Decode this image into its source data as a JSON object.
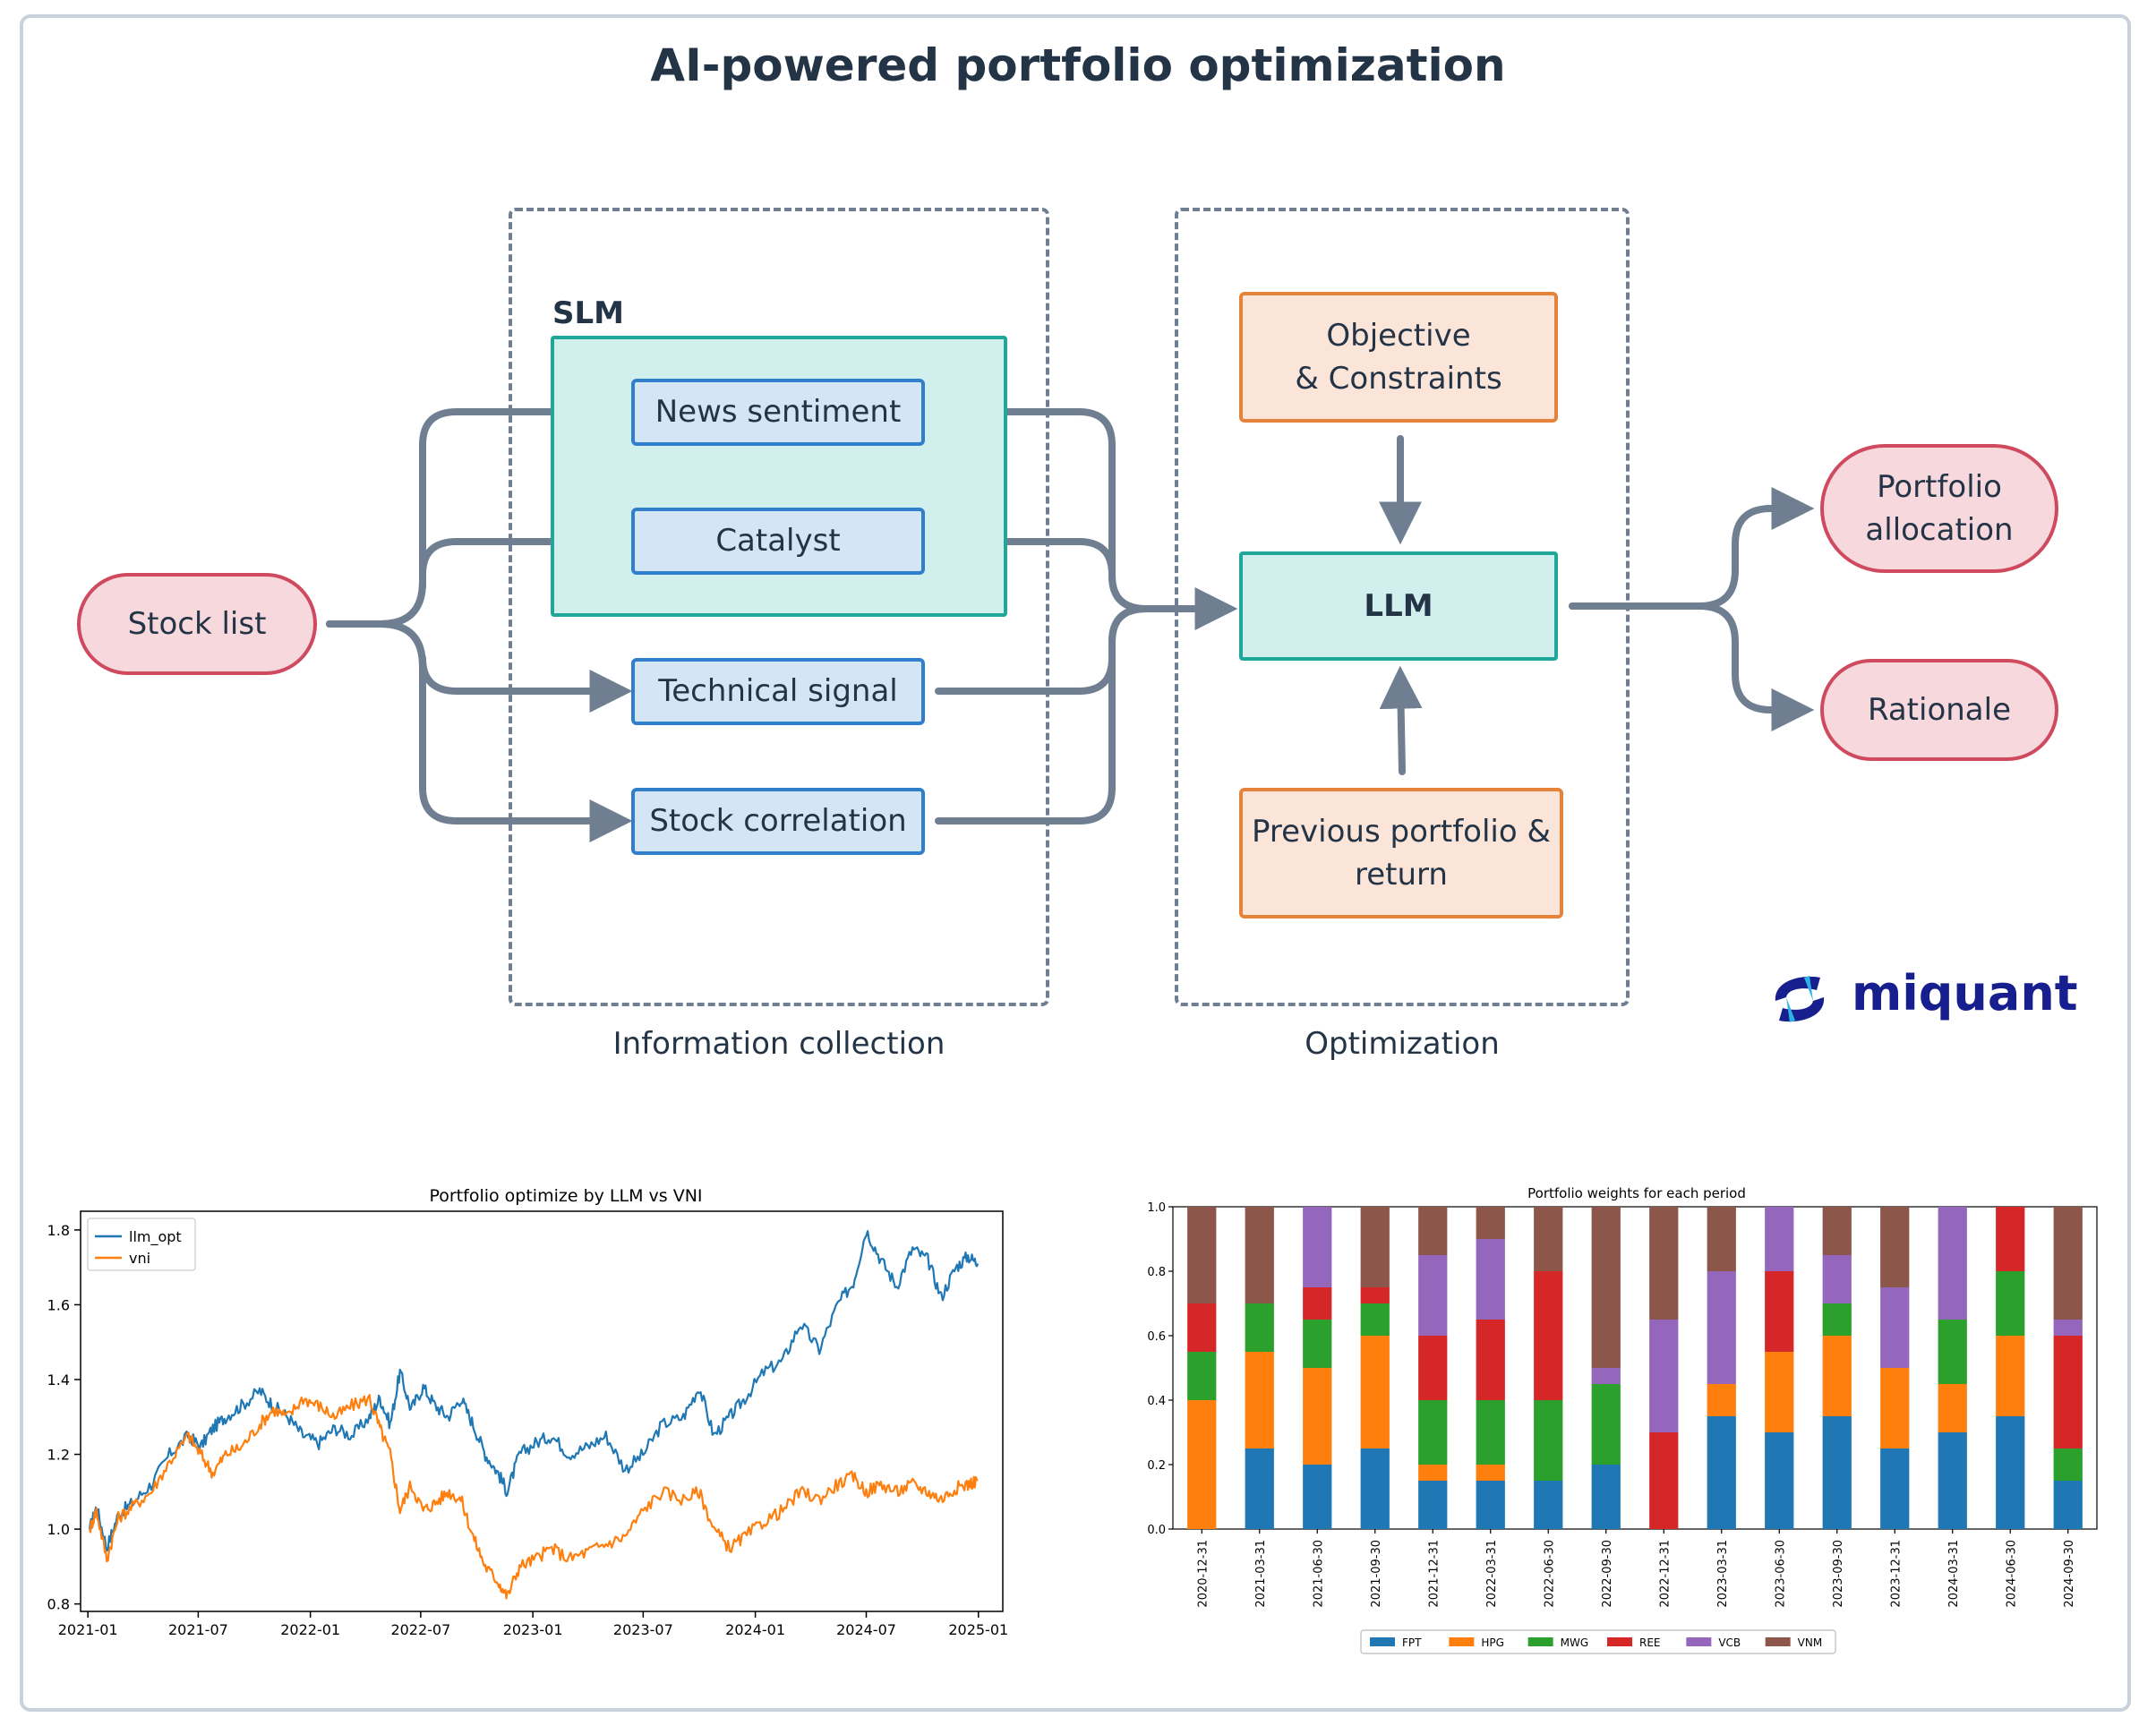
{
  "title": "AI-powered portfolio optimization",
  "diagram": {
    "stock_list": "Stock list",
    "slm_label": "SLM",
    "news_sentiment": "News sentiment",
    "catalyst": "Catalyst",
    "technical_signal": "Technical signal",
    "stock_correlation": "Stock correlation",
    "objective_line1": "Objective",
    "objective_line2": "& Constraints",
    "llm": "LLM",
    "previous_line1": "Previous portfolio &",
    "previous_line2": "return",
    "portfolio_line1": "Portfolio",
    "portfolio_line2": "allocation",
    "rationale": "Rationale",
    "info_caption": "Information collection",
    "opt_caption": "Optimization",
    "logo": "miquant",
    "colors": {
      "arrow": "#6f7f91",
      "pill": "#cf4a5e",
      "blue": "#2f7fcb",
      "orange": "#e6833a",
      "teal": "#1fa79a"
    }
  },
  "chart_data": [
    {
      "type": "line",
      "title": "Portfolio optimize by LLM vs VNI",
      "xlabel": "",
      "ylabel": "",
      "x_ticks": [
        "2021-01",
        "2021-07",
        "2022-01",
        "2022-07",
        "2023-01",
        "2023-07",
        "2024-01",
        "2024-07",
        "2025-01"
      ],
      "y_ticks": [
        "0.8",
        "1.0",
        "1.2",
        "1.4",
        "1.6",
        "1.8"
      ],
      "ylim": [
        0.78,
        1.85
      ],
      "xlim": [
        "2020-12-20",
        "2025-02-10"
      ],
      "legend": "top-left",
      "series": [
        {
          "name": "llm_opt",
          "color": "#1f77b4",
          "x": [
            "2021-01-04",
            "2021-01-15",
            "2021-02-01",
            "2021-02-20",
            "2021-03-15",
            "2021-04-15",
            "2021-05-15",
            "2021-06-15",
            "2021-07-05",
            "2021-07-25",
            "2021-08-15",
            "2021-09-10",
            "2021-10-10",
            "2021-11-01",
            "2021-11-25",
            "2021-12-20",
            "2022-01-15",
            "2022-02-10",
            "2022-03-10",
            "2022-04-08",
            "2022-04-25",
            "2022-05-12",
            "2022-05-28",
            "2022-06-15",
            "2022-07-05",
            "2022-07-25",
            "2022-08-15",
            "2022-09-05",
            "2022-09-25",
            "2022-10-15",
            "2022-11-05",
            "2022-11-20",
            "2022-12-10",
            "2023-01-05",
            "2023-02-01",
            "2023-03-01",
            "2023-04-01",
            "2023-05-01",
            "2023-06-01",
            "2023-07-01",
            "2023-08-01",
            "2023-09-05",
            "2023-10-01",
            "2023-10-25",
            "2023-11-20",
            "2023-12-15",
            "2024-01-15",
            "2024-02-15",
            "2024-03-15",
            "2024-04-15",
            "2024-05-15",
            "2024-06-10",
            "2024-07-01",
            "2024-07-25",
            "2024-08-20",
            "2024-09-15",
            "2024-10-10",
            "2024-11-01",
            "2024-11-25",
            "2024-12-15",
            "2024-12-31"
          ],
          "values": [
            1.0,
            1.06,
            0.95,
            1.04,
            1.07,
            1.12,
            1.2,
            1.25,
            1.22,
            1.27,
            1.3,
            1.33,
            1.37,
            1.33,
            1.3,
            1.25,
            1.23,
            1.27,
            1.25,
            1.3,
            1.35,
            1.28,
            1.42,
            1.32,
            1.38,
            1.33,
            1.3,
            1.35,
            1.28,
            1.2,
            1.15,
            1.1,
            1.2,
            1.23,
            1.25,
            1.2,
            1.22,
            1.25,
            1.16,
            1.2,
            1.28,
            1.3,
            1.38,
            1.25,
            1.3,
            1.35,
            1.42,
            1.45,
            1.55,
            1.48,
            1.6,
            1.66,
            1.8,
            1.72,
            1.65,
            1.75,
            1.72,
            1.62,
            1.7,
            1.73,
            1.71
          ]
        },
        {
          "name": "vni",
          "color": "#ff7f0e",
          "x": [
            "2021-01-04",
            "2021-01-15",
            "2021-02-01",
            "2021-02-20",
            "2021-03-15",
            "2021-04-15",
            "2021-05-15",
            "2021-06-15",
            "2021-07-05",
            "2021-07-25",
            "2021-08-15",
            "2021-09-10",
            "2021-10-10",
            "2021-11-01",
            "2021-11-25",
            "2021-12-20",
            "2022-01-15",
            "2022-02-10",
            "2022-03-10",
            "2022-04-08",
            "2022-04-25",
            "2022-05-12",
            "2022-05-28",
            "2022-06-15",
            "2022-07-05",
            "2022-07-25",
            "2022-08-15",
            "2022-09-05",
            "2022-09-25",
            "2022-10-15",
            "2022-11-05",
            "2022-11-20",
            "2022-12-10",
            "2023-01-05",
            "2023-02-01",
            "2023-03-01",
            "2023-04-01",
            "2023-05-01",
            "2023-06-01",
            "2023-07-01",
            "2023-08-01",
            "2023-09-05",
            "2023-10-01",
            "2023-10-25",
            "2023-11-20",
            "2023-12-15",
            "2024-01-15",
            "2024-02-15",
            "2024-03-15",
            "2024-04-15",
            "2024-05-15",
            "2024-06-10",
            "2024-07-01",
            "2024-07-25",
            "2024-08-20",
            "2024-09-15",
            "2024-10-10",
            "2024-11-01",
            "2024-11-25",
            "2024-12-15",
            "2024-12-31"
          ],
          "values": [
            1.0,
            1.05,
            0.92,
            1.03,
            1.06,
            1.1,
            1.18,
            1.25,
            1.2,
            1.15,
            1.2,
            1.22,
            1.28,
            1.32,
            1.3,
            1.35,
            1.33,
            1.3,
            1.33,
            1.35,
            1.27,
            1.2,
            1.05,
            1.12,
            1.05,
            1.07,
            1.1,
            1.08,
            0.98,
            0.9,
            0.86,
            0.82,
            0.9,
            0.92,
            0.95,
            0.92,
            0.94,
            0.96,
            0.98,
            1.05,
            1.1,
            1.08,
            1.1,
            1.0,
            0.95,
            0.98,
            1.02,
            1.05,
            1.1,
            1.08,
            1.12,
            1.14,
            1.1,
            1.12,
            1.1,
            1.12,
            1.1,
            1.08,
            1.11,
            1.12,
            1.13
          ]
        }
      ]
    },
    {
      "type": "bar",
      "stacked": true,
      "title": "Portfolio weights for each period",
      "xlabel": "",
      "ylabel": "",
      "ylim": [
        0,
        1.0
      ],
      "y_ticks": [
        "0.0",
        "0.2",
        "0.4",
        "0.6",
        "0.8",
        "1.0"
      ],
      "legend": "bottom",
      "categories": [
        "2020-12-31",
        "2021-03-31",
        "2021-06-30",
        "2021-09-30",
        "2021-12-31",
        "2022-03-31",
        "2022-06-30",
        "2022-09-30",
        "2022-12-31",
        "2023-03-31",
        "2023-06-30",
        "2023-09-30",
        "2023-12-31",
        "2024-03-31",
        "2024-06-30",
        "2024-09-30"
      ],
      "series": [
        {
          "name": "FPT",
          "color": "#1f77b4",
          "values": [
            0.0,
            0.25,
            0.2,
            0.25,
            0.15,
            0.15,
            0.15,
            0.2,
            0.0,
            0.35,
            0.3,
            0.35,
            0.25,
            0.3,
            0.35,
            0.15
          ]
        },
        {
          "name": "HPG",
          "color": "#ff7f0e",
          "values": [
            0.4,
            0.3,
            0.3,
            0.35,
            0.05,
            0.05,
            0.0,
            0.0,
            0.0,
            0.1,
            0.25,
            0.25,
            0.25,
            0.15,
            0.25,
            0.0
          ]
        },
        {
          "name": "MWG",
          "color": "#2ca02c",
          "values": [
            0.15,
            0.15,
            0.15,
            0.1,
            0.2,
            0.2,
            0.25,
            0.25,
            0.0,
            0.0,
            0.0,
            0.1,
            0.0,
            0.2,
            0.2,
            0.1
          ]
        },
        {
          "name": "REE",
          "color": "#d62728",
          "values": [
            0.15,
            0.0,
            0.1,
            0.05,
            0.2,
            0.25,
            0.4,
            0.0,
            0.3,
            0.0,
            0.25,
            0.0,
            0.0,
            0.0,
            0.2,
            0.35
          ]
        },
        {
          "name": "VCB",
          "color": "#9467bd",
          "values": [
            0.0,
            0.0,
            0.25,
            0.0,
            0.25,
            0.25,
            0.0,
            0.05,
            0.35,
            0.35,
            0.2,
            0.15,
            0.25,
            0.35,
            0.0,
            0.05
          ]
        },
        {
          "name": "VNM",
          "color": "#8c564b",
          "values": [
            0.3,
            0.3,
            0.0,
            0.25,
            0.15,
            0.1,
            0.2,
            0.5,
            0.35,
            0.2,
            0.0,
            0.15,
            0.25,
            0.0,
            0.0,
            0.35
          ]
        }
      ]
    }
  ]
}
